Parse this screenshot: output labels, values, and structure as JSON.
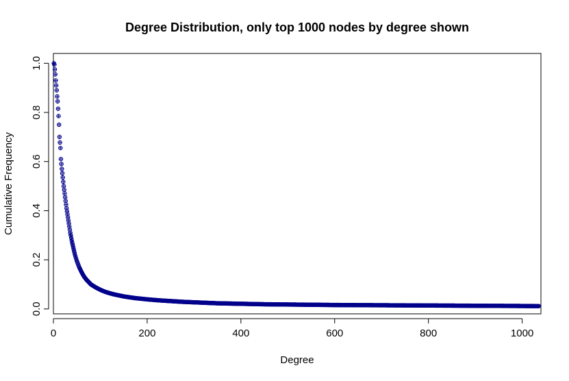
{
  "chart_data": {
    "type": "scatter",
    "title": "Degree Distribution, only top 1000 nodes by degree shown",
    "xlabel": "Degree",
    "ylabel": "Cumulative Frequency",
    "xlim": [
      0,
      1040
    ],
    "ylim": [
      -0.02,
      1.04
    ],
    "x_ticks": [
      0,
      200,
      400,
      600,
      800,
      1000
    ],
    "x_tick_labels": [
      "0",
      "200",
      "400",
      "600",
      "800",
      "1000"
    ],
    "y_ticks": [
      0.0,
      0.2,
      0.4,
      0.6,
      0.8,
      1.0
    ],
    "y_tick_labels": [
      "0.0",
      "0.2",
      "0.4",
      "0.6",
      "0.8",
      "1.0"
    ],
    "grid": false,
    "marker": "circle-plus",
    "color": "#00008b",
    "series": [
      {
        "x": [
          1,
          2,
          3,
          4,
          5,
          6,
          7,
          8,
          9,
          10,
          11,
          12,
          13,
          15,
          16,
          18,
          20,
          22,
          24,
          26,
          28,
          30,
          32,
          34,
          36,
          38,
          40,
          43,
          46,
          50,
          55,
          60,
          65,
          70,
          80,
          90,
          100,
          110,
          120,
          130,
          140,
          150,
          160,
          175,
          190,
          200,
          225,
          250,
          275,
          300,
          325,
          350,
          375,
          400,
          450,
          500,
          550,
          600,
          650,
          700,
          750,
          800,
          850,
          900,
          950,
          1000,
          1040
        ],
        "y": [
          1.0,
          0.995,
          0.975,
          0.955,
          0.93,
          0.91,
          0.89,
          0.865,
          0.845,
          0.815,
          0.785,
          0.75,
          0.7,
          0.655,
          0.61,
          0.57,
          0.535,
          0.5,
          0.47,
          0.44,
          0.41,
          0.385,
          0.36,
          0.335,
          0.31,
          0.29,
          0.27,
          0.245,
          0.22,
          0.195,
          0.17,
          0.15,
          0.133,
          0.12,
          0.1,
          0.088,
          0.078,
          0.07,
          0.064,
          0.059,
          0.055,
          0.051,
          0.048,
          0.044,
          0.041,
          0.039,
          0.035,
          0.032,
          0.029,
          0.027,
          0.025,
          0.023,
          0.022,
          0.021,
          0.019,
          0.018,
          0.017,
          0.016,
          0.0155,
          0.015,
          0.0145,
          0.014,
          0.0135,
          0.013,
          0.0125,
          0.012,
          0.0115
        ]
      }
    ]
  }
}
